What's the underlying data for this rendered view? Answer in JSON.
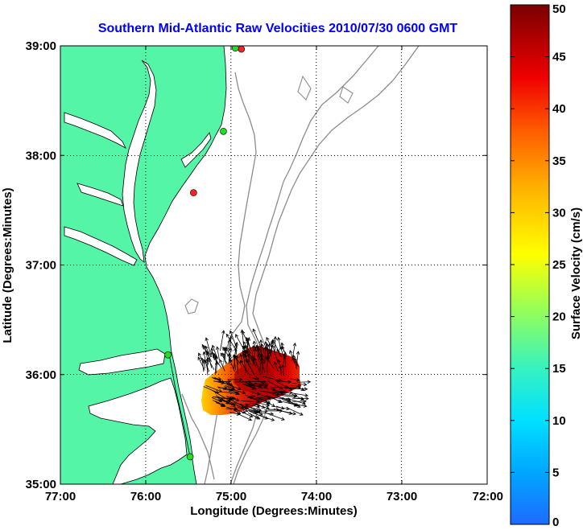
{
  "title": "Southern Mid-Atlantic Raw Velocities 2010/07/30 0600 GMT",
  "map": {
    "x_axis_label": "Longitude (Degrees:Minutes)",
    "y_axis_label": "Latitude (Degrees:Minutes)",
    "x_ticks": [
      {
        "label": "77:00",
        "lon": -77
      },
      {
        "label": "76:00",
        "lon": -76
      },
      {
        "label": "75:00",
        "lon": -75
      },
      {
        "label": "74:00",
        "lon": -74
      },
      {
        "label": "73:00",
        "lon": -73
      },
      {
        "label": "72:00",
        "lon": -72
      }
    ],
    "y_ticks": [
      {
        "label": "39:00",
        "lat": 39
      },
      {
        "label": "38:00",
        "lat": 38
      },
      {
        "label": "37:00",
        "lat": 37
      },
      {
        "label": "36:00",
        "lat": 36
      },
      {
        "label": "35:00",
        "lat": 35
      }
    ],
    "lon_range": [
      -77,
      -72
    ],
    "lat_range": [
      35,
      39
    ],
    "grid": true,
    "land_color": "#55f5a8",
    "coastline_color": "#000000",
    "bathymetry_color": "#8c8c8c",
    "stations": [
      {
        "lon": -74.88,
        "lat": 38.97,
        "color": "#ff2020"
      },
      {
        "lon": -74.95,
        "lat": 38.98,
        "color": "#22dd22"
      },
      {
        "lon": -75.09,
        "lat": 38.22,
        "color": "#22dd22"
      },
      {
        "lon": -75.44,
        "lat": 37.66,
        "color": "#ff2020"
      },
      {
        "lon": -75.74,
        "lat": 36.18,
        "color": "#22dd22"
      },
      {
        "lon": -75.48,
        "lat": 35.25,
        "color": "#22dd22"
      }
    ]
  },
  "colorbar": {
    "label": "Surface Velocity (cm/s)",
    "min": 0,
    "max": 50,
    "tick_labels": [
      "0",
      "5",
      "10",
      "15",
      "20",
      "25",
      "30",
      "35",
      "40",
      "45",
      "50"
    ],
    "colors": [
      "#1e6bff",
      "#00c8ff",
      "#36f2c0",
      "#a8ff4a",
      "#ffff00",
      "#ffb000",
      "#ff5000",
      "#e80000",
      "#880000"
    ]
  }
}
